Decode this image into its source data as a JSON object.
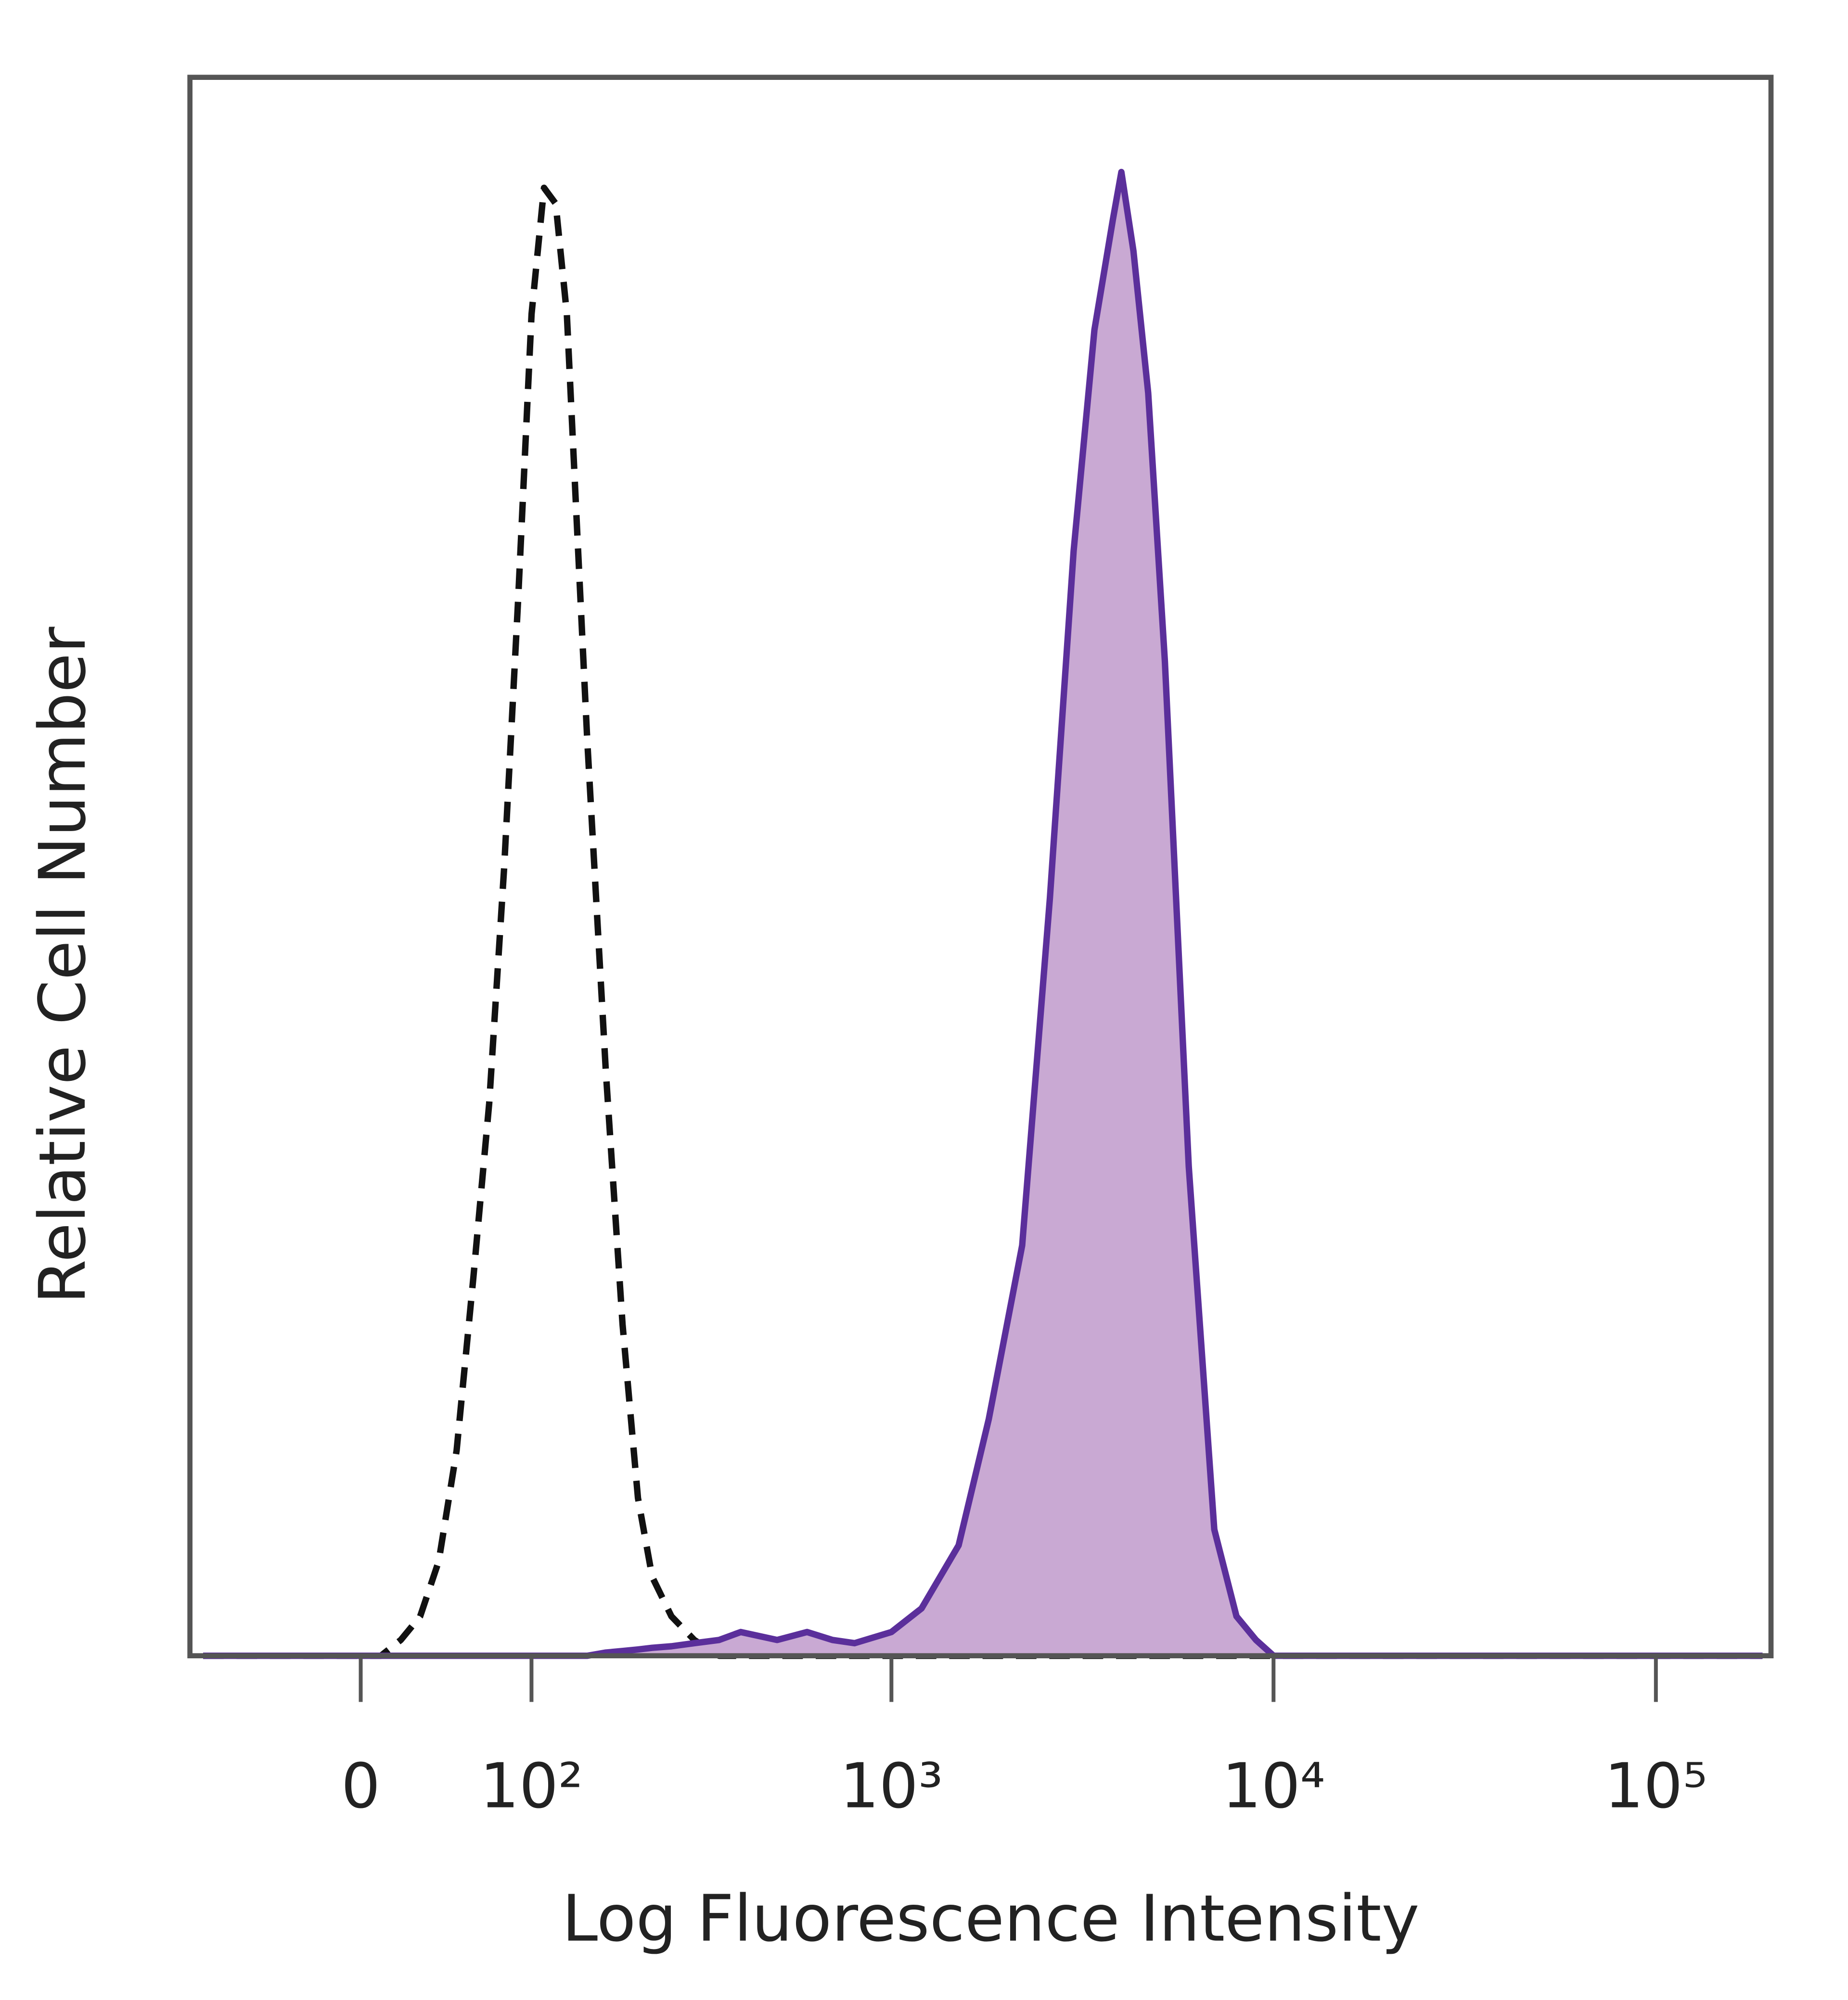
{
  "chart_data": {
    "type": "histogram-overlay",
    "x_label": "Log Fluorescence Intensity",
    "y_label": "Relative Cell Number",
    "xscale": "biexponential",
    "xlim": [
      -100,
      200000
    ],
    "ylim": [
      0,
      100
    ],
    "xticks": [
      0,
      {
        "value": 100,
        "label": "10²"
      },
      {
        "value": 1000,
        "label": "10³"
      },
      {
        "value": 10000,
        "label": "10⁴"
      },
      {
        "value": 100000,
        "label": "10⁵"
      }
    ],
    "x": [
      -90,
      -50,
      0,
      10,
      20,
      30,
      40,
      50,
      60,
      70,
      80,
      90,
      100,
      110,
      120,
      130,
      140,
      150,
      170,
      190,
      210,
      230,
      260,
      300,
      350,
      400,
      500,
      600,
      700,
      800,
      1000,
      1200,
      1500,
      1800,
      2200,
      2600,
      3000,
      3400,
      3800,
      4000,
      4300,
      4700,
      5200,
      6000,
      7000,
      8000,
      9000,
      10000,
      12000,
      20000,
      50000,
      100000,
      190000
    ],
    "series": [
      {
        "color": "#111111",
        "dashed": true,
        "filled": false,
        "values": [
          0,
          0,
          0,
          0,
          1,
          2.5,
          6,
          13,
          24,
          35,
          50,
          67,
          85,
          93,
          92,
          85,
          71,
          58,
          37,
          21,
          10,
          5,
          2.5,
          1,
          0,
          0,
          0,
          0,
          0,
          0,
          0,
          0,
          0,
          0,
          0,
          0,
          0,
          0,
          0,
          0,
          0,
          0,
          0,
          0,
          0,
          0,
          0,
          0,
          0,
          0,
          0,
          0,
          0
        ]
      },
      {
        "color": "#5b2f9b",
        "fill": "#c9a9d3",
        "dashed": false,
        "filled": true,
        "values": [
          0,
          0,
          0,
          0,
          0,
          0,
          0,
          0,
          0,
          0,
          0,
          0,
          0,
          0,
          0,
          0,
          0,
          0,
          0.2,
          0.3,
          0.4,
          0.5,
          0.6,
          0.8,
          1,
          1.5,
          1,
          1.5,
          1,
          0.8,
          1.5,
          3,
          7,
          15,
          26,
          48,
          70,
          84,
          91,
          94,
          89,
          80,
          63,
          31,
          8,
          2.5,
          1,
          0,
          0,
          0,
          0,
          0,
          0
        ]
      }
    ]
  }
}
